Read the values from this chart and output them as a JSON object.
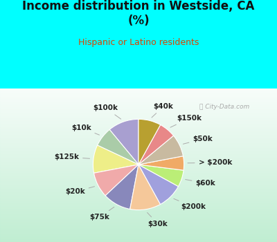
{
  "title": "Income distribution in Westside, CA\n(%)",
  "subtitle": "Hispanic or Latino residents",
  "watermark": "City-Data.com",
  "fig_bg": "#00FFFF",
  "chart_bg_top": "#E8F8F5",
  "chart_bg_bottom": "#C0ECD8",
  "labels": [
    "$100k",
    "$10k",
    "$125k",
    "$20k",
    "$75k",
    "$30k",
    "$200k",
    "$60k",
    "> $200k",
    "$50k",
    "$150k",
    "$40k"
  ],
  "values": [
    11,
    7,
    10,
    9,
    10,
    11,
    9,
    6,
    5,
    8,
    6,
    8
  ],
  "colors": [
    "#A89FD0",
    "#AACCA8",
    "#EEEE88",
    "#F0AAAA",
    "#8888BB",
    "#F5C89A",
    "#A0A0DD",
    "#BBEE77",
    "#F0AA66",
    "#C8BAA0",
    "#E88888",
    "#B8A030"
  ],
  "startangle": 90,
  "label_fontsize": 7.5,
  "title_fontsize": 12,
  "subtitle_fontsize": 9
}
